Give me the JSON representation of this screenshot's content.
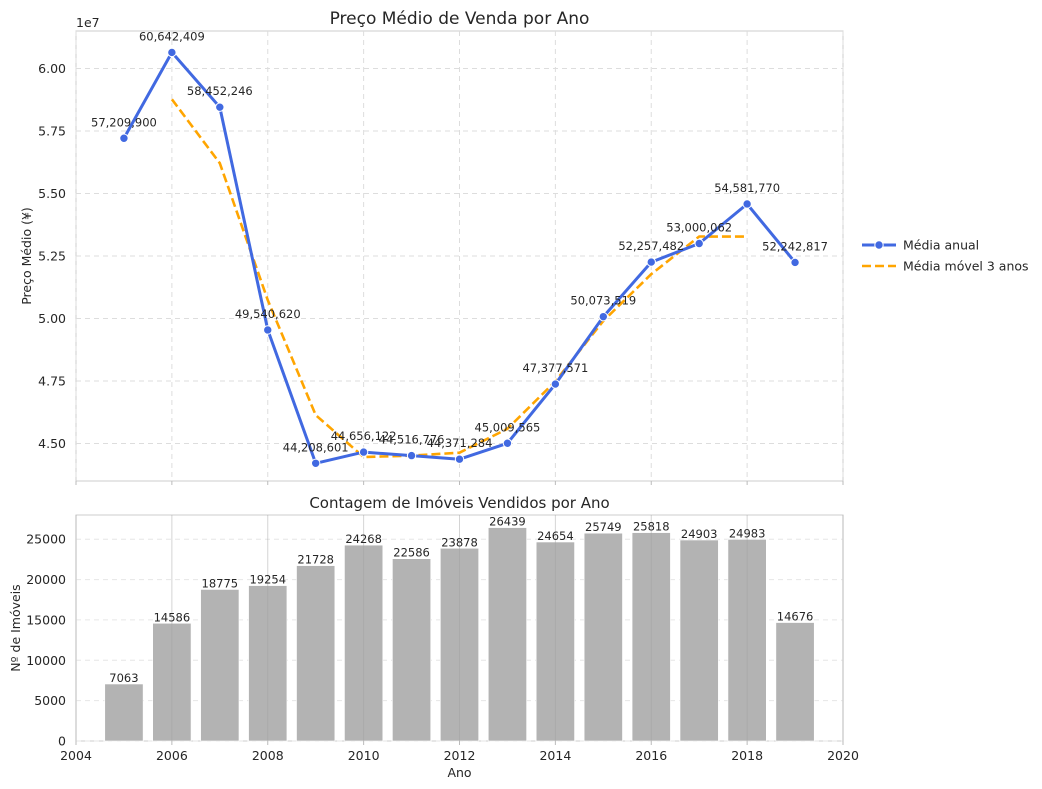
{
  "chart_data": [
    {
      "type": "line",
      "title": "Preço Médio de Venda por Ano",
      "xlabel": "",
      "ylabel": "Preço Médio (¥)",
      "offset_label": "1e7",
      "xlim": [
        2004,
        2020
      ],
      "ylim": [
        43500000,
        61500000
      ],
      "yticks": [
        "4.50",
        "4.75",
        "5.00",
        "5.25",
        "5.50",
        "5.75",
        "6.00"
      ],
      "ytick_values": [
        45000000,
        47500000,
        50000000,
        52500000,
        55000000,
        57500000,
        60000000
      ],
      "grid": true,
      "legend": "outside-right",
      "series": [
        {
          "name": "Média anual",
          "color": "#4169e1",
          "x": [
            2005,
            2006,
            2007,
            2008,
            2009,
            2010,
            2011,
            2012,
            2013,
            2014,
            2015,
            2016,
            2017,
            2018,
            2019
          ],
          "values": [
            57209900,
            60642409,
            58452246,
            49540620,
            44208601,
            44656122,
            44516776,
            44371284,
            45009565,
            47377571,
            50073519,
            52257482,
            53000062,
            54581770,
            52242817
          ],
          "labels": [
            "57,209,900",
            "60,642,409",
            "58,452,246",
            "49,540,620",
            "44,208,601",
            "44,656,122",
            "44,516,776",
            "44,371,284",
            "45,009,565",
            "47,377,571",
            "50,073,519",
            "52,257,482",
            "53,000,062",
            "54,581,770",
            "52,242,817"
          ]
        },
        {
          "name": "Média móvel 3 anos",
          "color": "#ffa500",
          "x": [
            2006,
            2007,
            2008,
            2009,
            2010,
            2011,
            2012,
            2013,
            2014,
            2015,
            2016,
            2017,
            2018
          ],
          "values": [
            58768185,
            56211758,
            50733822,
            46135114,
            44460500,
            44514727,
            44632542,
            45586140,
            47486885,
            49902857,
            51777021,
            53279771,
            53274883
          ]
        }
      ]
    },
    {
      "type": "bar",
      "title": "Contagem de Imóveis Vendidos por Ano",
      "xlabel": "Ano",
      "ylabel": "Nº de Imóveis",
      "xlim": [
        2004,
        2020
      ],
      "ylim": [
        0,
        28000
      ],
      "xticks": [
        "2004",
        "2006",
        "2008",
        "2010",
        "2012",
        "2014",
        "2016",
        "2018",
        "2020"
      ],
      "xtick_values": [
        2004,
        2006,
        2008,
        2010,
        2012,
        2014,
        2016,
        2018,
        2020
      ],
      "yticks": [
        "0",
        "5000",
        "10000",
        "15000",
        "20000",
        "25000"
      ],
      "ytick_values": [
        0,
        5000,
        10000,
        15000,
        20000,
        25000
      ],
      "grid": true,
      "color": "#b3b3b3",
      "categories": [
        2005,
        2006,
        2007,
        2008,
        2009,
        2010,
        2011,
        2012,
        2013,
        2014,
        2015,
        2016,
        2017,
        2018,
        2019
      ],
      "values": [
        7063,
        14586,
        18775,
        19254,
        21728,
        24268,
        22586,
        23878,
        26439,
        24654,
        25749,
        25818,
        24903,
        24983,
        14676
      ],
      "labels": [
        "7063",
        "14586",
        "18775",
        "19254",
        "21728",
        "24268",
        "22586",
        "23878",
        "26439",
        "24654",
        "25749",
        "25818",
        "24903",
        "24983",
        "14676"
      ]
    }
  ]
}
